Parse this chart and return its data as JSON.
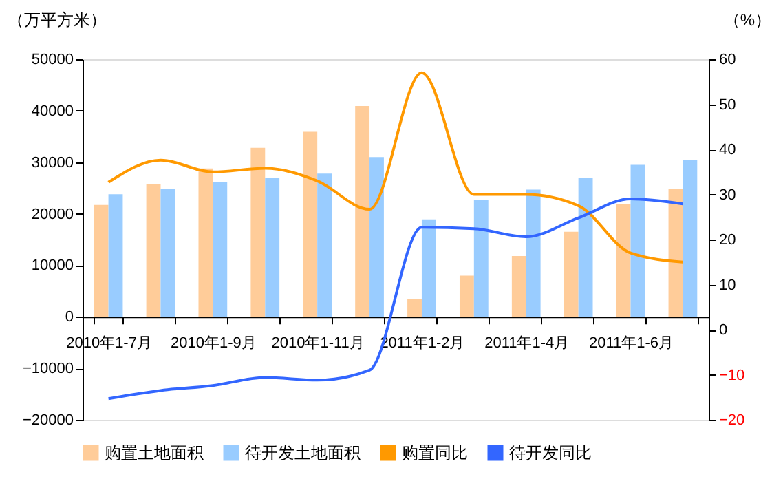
{
  "chart_data": {
    "type": "bar",
    "ylabel": "（万平方米）",
    "y2label": "（%）",
    "categories": [
      "2010年1-7月",
      null,
      "2010年1-9月",
      null,
      "2010年1-11月",
      null,
      "2011年1-2月",
      null,
      "2011年1-4月",
      null,
      "2011年1-6月",
      null
    ],
    "series": [
      {
        "name": "购置土地面积",
        "color": "#ffcc99",
        "values": [
          21700,
          25700,
          28800,
          32800,
          35900,
          40900,
          3500,
          8000,
          11800,
          16500,
          21800,
          24900
        ]
      },
      {
        "name": "待开发土地面积",
        "color": "#99ccff",
        "values": [
          23800,
          24900,
          26200,
          27000,
          27800,
          31000,
          18900,
          22600,
          24700,
          26900,
          29500,
          30400
        ]
      },
      {
        "name": "购置同比",
        "type": "line",
        "axis": "y2",
        "color": "#ff9900",
        "values": [
          32.7,
          37.6,
          35,
          35.8,
          33,
          26.7,
          57,
          30,
          30,
          27.5,
          17,
          15
        ]
      },
      {
        "name": "待开发同比",
        "type": "line",
        "axis": "y2",
        "color": "#3366ff",
        "values": [
          -15.3,
          -13.5,
          -12.4,
          -10.6,
          -11.2,
          -9,
          22.7,
          22.4,
          20.6,
          24.8,
          29,
          27.9
        ]
      }
    ],
    "ylim": [
      -20000,
      50000
    ],
    "yticks": [
      -20000,
      -10000,
      0,
      10000,
      20000,
      30000,
      40000,
      50000
    ],
    "y2lim": [
      -20,
      60
    ],
    "y2ticks": [
      -20,
      -10,
      0,
      10,
      20,
      30,
      40,
      50,
      60
    ],
    "legend": "bottom",
    "grid": false,
    "line_style": "solid",
    "marker": "none"
  }
}
